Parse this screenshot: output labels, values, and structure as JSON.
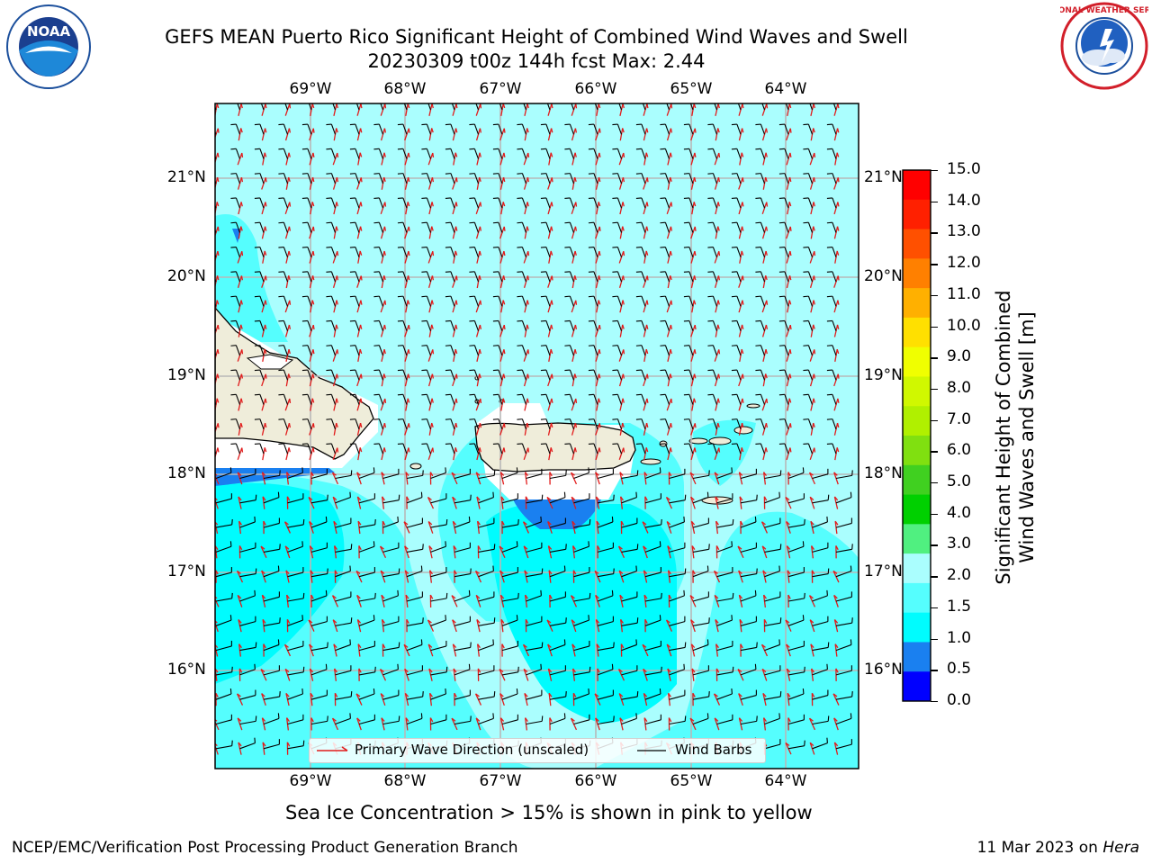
{
  "header": {
    "title_line1": "GEFS MEAN Puerto Rico Significant Height of Combined Wind Waves and Swell",
    "title_line2": "20230309 t00z 144h fcst   Max: 2.44",
    "noaa_logo_text": "NOAA",
    "nws_logo_text": "NATIONAL WEATHER SERVICE"
  },
  "map": {
    "lon_labels": [
      "69°W",
      "68°W",
      "67°W",
      "66°W",
      "65°W",
      "64°W"
    ],
    "lat_labels": [
      "21°N",
      "20°N",
      "19°N",
      "18°N",
      "17°N",
      "16°N"
    ],
    "legend": {
      "wave_label": "Primary Wave Direction (unscaled)",
      "barb_label": "Wind Barbs"
    },
    "colors": {
      "sea_light": "#aafefe",
      "sea_mid": "#55fefe",
      "sea_cyan": "#00fcfe",
      "blue_band": "#1a80f0",
      "land": "#efedda",
      "wave_arrow": "#e21b1b"
    }
  },
  "colorbar": {
    "label_line1": "Significant Height of Combined",
    "label_line2": "Wind Waves and Swell [m]",
    "ticks": [
      "15.0",
      "14.0",
      "13.0",
      "12.0",
      "11.0",
      "10.0",
      "9.0",
      "8.0",
      "7.0",
      "6.0",
      "5.0",
      "4.0",
      "3.0",
      "2.0",
      "1.5",
      "1.0",
      "0.5",
      "0.0"
    ],
    "colors_top_to_bottom": [
      "#ff0000",
      "#ff2000",
      "#ff5000",
      "#ff8000",
      "#ffb000",
      "#ffe000",
      "#f0ff00",
      "#d0f800",
      "#b0f000",
      "#80e010",
      "#40d020",
      "#00d000",
      "#50f080",
      "#aafefe",
      "#55fefe",
      "#00fcfe",
      "#1a80f0",
      "#0000ff"
    ]
  },
  "footer": {
    "note": "Sea Ice Concentration > 15% is shown in pink to yellow",
    "branch": "NCEP/EMC/Verification Post Processing Product Generation Branch",
    "date": "11 Mar 2023 on ",
    "host": "Hera"
  }
}
